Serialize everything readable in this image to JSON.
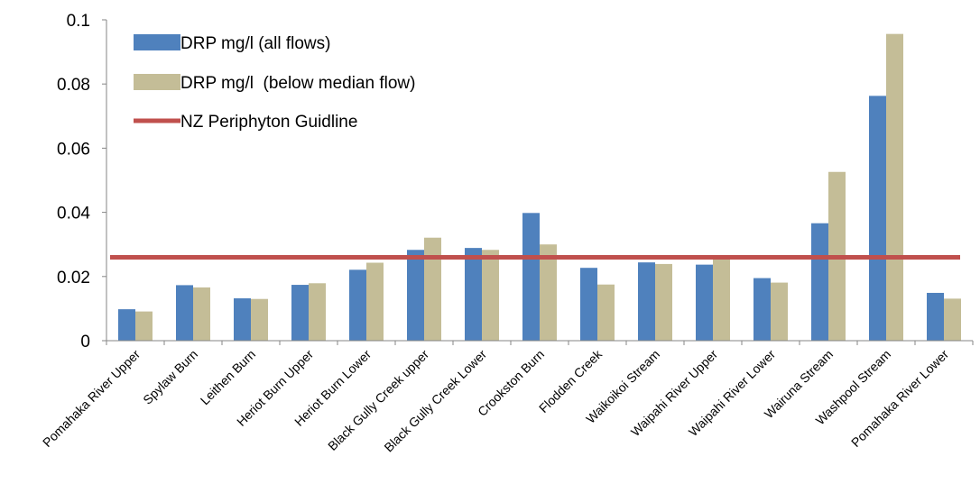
{
  "chart_data": {
    "type": "bar",
    "title": "",
    "xlabel": "",
    "ylabel": "",
    "ylim": [
      0,
      0.1
    ],
    "yticks": [
      "0",
      "0.02",
      "0.04",
      "0.06",
      "0.08",
      "0.1"
    ],
    "categories": [
      "Pomahaka River Upper",
      "Spylaw Burn",
      "Leithen Burn",
      "Heriot Burn Upper",
      "Heriot Burn Lower",
      "Black Gully Creek upper",
      "Black Gully Creek Lower",
      "Crookston Burn",
      "Flodden Creek",
      "Waikoikoi Stream",
      "Waipahi River Upper",
      "Waipahi River Lower",
      "Wairuna Stream",
      "Washpool Stream",
      "Pomahaka River Lower"
    ],
    "series": [
      {
        "name": "DRP mg/l (all flows)",
        "color": "#4f81bd",
        "values": [
          0.0098,
          0.0173,
          0.0132,
          0.0174,
          0.0221,
          0.0283,
          0.0289,
          0.0398,
          0.0227,
          0.0244,
          0.0237,
          0.0195,
          0.0366,
          0.0763,
          0.0149
        ]
      },
      {
        "name": "DRP mg/l  (below median flow)",
        "color": "#c4bd97",
        "values": [
          0.0091,
          0.0166,
          0.013,
          0.0179,
          0.0243,
          0.0321,
          0.0283,
          0.03,
          0.0175,
          0.0239,
          0.0258,
          0.0181,
          0.0526,
          0.0956,
          0.0131
        ]
      }
    ],
    "reference_line": {
      "name": "NZ Periphyton Guidline",
      "value": 0.026,
      "color": "#c0504d"
    },
    "grid": false,
    "legend": "top-left"
  }
}
